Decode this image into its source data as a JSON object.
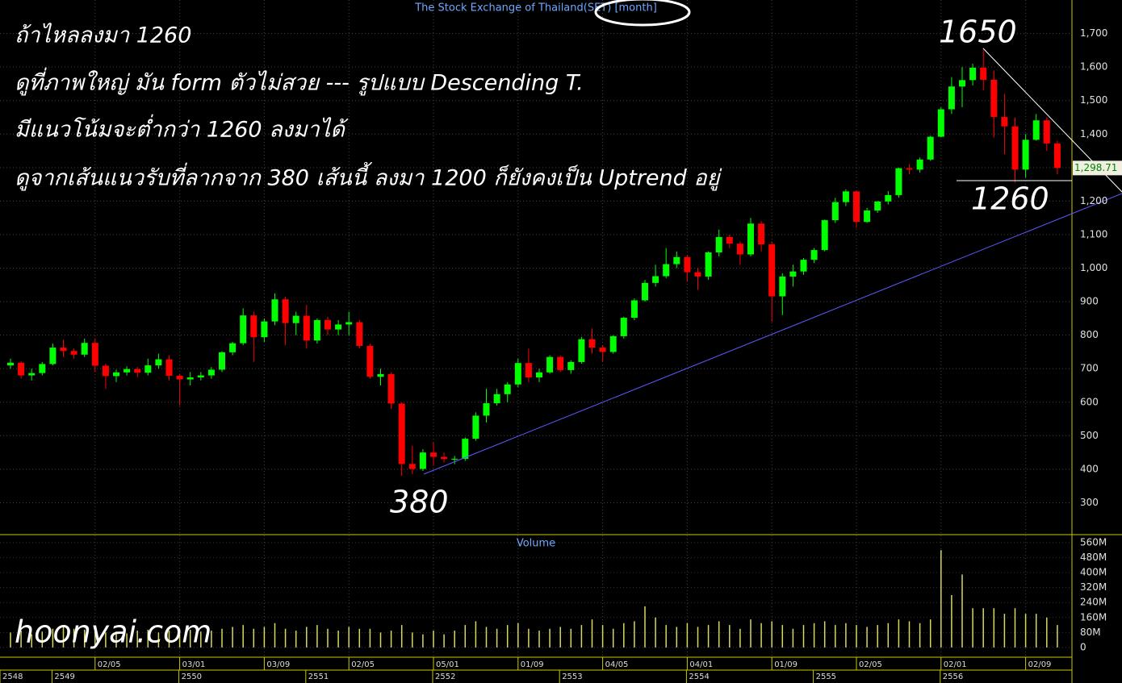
{
  "chart_data": {
    "type": "candlestick",
    "title": "The Stock Exchange of Thailand(SET) [month]",
    "volume_title": "Volume",
    "annotations": [
      "ถ้าไหลลงมา 1260",
      "ดูที่ภาพใหญ่ มัน form ตัวไม่สวย --- รูปแบบ Descending T.",
      "มีแนวโน้มจะต่ำกว่า 1260 ลงมาได้",
      "ดูจากเส้นแนวรับที่ลากจาก 380 เส้นนี้ ลงมา 1200 ก็ยังคงเป็น Uptrend อยู่"
    ],
    "level_labels": [
      "1650",
      "1260",
      "380"
    ],
    "watermark": "hoonyai.com",
    "up_color": "#00ff00",
    "down_color": "#ff0000",
    "volume_color": "#d8d860",
    "grid": true,
    "last_price": {
      "value": 1298.71,
      "label": "1,298.71"
    },
    "categories": [
      null,
      null,
      null,
      null,
      null,
      null,
      null,
      null,
      "02/05",
      null,
      null,
      null,
      null,
      null,
      null,
      null,
      "03/01",
      null,
      null,
      null,
      null,
      null,
      null,
      null,
      "03/09",
      null,
      null,
      null,
      null,
      null,
      null,
      null,
      "02/05",
      null,
      null,
      null,
      null,
      null,
      null,
      null,
      "05/01",
      null,
      null,
      null,
      null,
      null,
      null,
      null,
      "01/09",
      null,
      null,
      null,
      null,
      null,
      null,
      null,
      "04/05",
      null,
      null,
      null,
      null,
      null,
      null,
      null,
      "04/01",
      null,
      null,
      null,
      null,
      null,
      null,
      null,
      "01/09",
      null,
      null,
      null,
      null,
      null,
      null,
      null,
      "02/05",
      null,
      null,
      null,
      null,
      null,
      null,
      null,
      "02/01",
      null,
      null,
      null,
      null,
      null,
      null,
      null,
      "02/09",
      null,
      null,
      null
    ],
    "year_labels": [
      "2548",
      null,
      null,
      null,
      "2549",
      null,
      null,
      null,
      null,
      null,
      null,
      null,
      null,
      null,
      null,
      null,
      "2550",
      null,
      null,
      null,
      null,
      null,
      null,
      null,
      null,
      null,
      null,
      null,
      "2551",
      null,
      null,
      null,
      null,
      null,
      null,
      null,
      null,
      null,
      null,
      null,
      "2552",
      null,
      null,
      null,
      null,
      null,
      null,
      null,
      null,
      null,
      null,
      null,
      "2553",
      null,
      null,
      null,
      null,
      null,
      null,
      null,
      null,
      null,
      null,
      null,
      "2554",
      null,
      null,
      null,
      null,
      null,
      null,
      null,
      null,
      null,
      null,
      null,
      "2555",
      null,
      null,
      null,
      null,
      null,
      null,
      null,
      null,
      null,
      null,
      null,
      "2556",
      null,
      null,
      null,
      null,
      null,
      null,
      null,
      null,
      null,
      null,
      null
    ],
    "open": [
      710,
      718,
      680,
      687,
      714,
      763,
      753,
      742,
      777,
      709,
      678,
      689,
      699,
      688,
      710,
      728,
      679,
      668,
      674,
      680,
      697,
      749,
      776,
      859,
      794,
      841,
      907,
      836,
      858,
      784,
      845,
      817,
      832,
      839,
      768,
      676,
      684,
      596,
      416,
      401,
      450,
      437,
      431,
      431,
      491,
      560,
      597,
      624,
      653,
      717,
      674,
      689,
      735,
      696,
      720,
      788,
      763,
      750,
      797,
      852,
      904,
      956,
      976,
      1012,
      1033,
      988,
      975,
      1047,
      1093,
      1073,
      1041,
      1133,
      1071,
      916,
      975,
      990,
      1025,
      1054,
      1143,
      1197,
      1229,
      1138,
      1172,
      1199,
      1218,
      1298,
      1294,
      1324,
      1392,
      1474,
      1542,
      1561,
      1598,
      1562,
      1451,
      1423,
      1294,
      1383,
      1441,
      1372
    ],
    "high": [
      730,
      722,
      700,
      720,
      775,
      787,
      760,
      790,
      790,
      715,
      697,
      707,
      705,
      730,
      745,
      740,
      685,
      690,
      690,
      705,
      752,
      780,
      880,
      870,
      850,
      925,
      915,
      870,
      890,
      850,
      855,
      845,
      870,
      845,
      775,
      700,
      690,
      600,
      470,
      460,
      480,
      450,
      440,
      495,
      570,
      640,
      640,
      660,
      730,
      760,
      700,
      740,
      740,
      725,
      795,
      820,
      770,
      800,
      855,
      910,
      965,
      1010,
      1060,
      1050,
      1040,
      1000,
      1050,
      1115,
      1100,
      1080,
      1150,
      1140,
      1080,
      985,
      1010,
      1030,
      1060,
      1145,
      1210,
      1235,
      1230,
      1180,
      1200,
      1230,
      1300,
      1310,
      1330,
      1395,
      1480,
      1570,
      1600,
      1610,
      1650,
      1590,
      1520,
      1450,
      1400,
      1460,
      1450,
      1380
    ],
    "low": [
      700,
      670,
      665,
      680,
      710,
      735,
      730,
      735,
      690,
      640,
      660,
      680,
      675,
      680,
      700,
      665,
      590,
      650,
      665,
      670,
      690,
      740,
      770,
      720,
      780,
      830,
      770,
      800,
      760,
      775,
      800,
      800,
      800,
      760,
      670,
      650,
      580,
      380,
      385,
      395,
      410,
      420,
      415,
      425,
      485,
      540,
      590,
      600,
      645,
      660,
      660,
      685,
      690,
      685,
      715,
      745,
      720,
      745,
      790,
      845,
      900,
      945,
      970,
      1000,
      960,
      935,
      965,
      1035,
      1060,
      1010,
      1035,
      1050,
      840,
      860,
      945,
      980,
      1015,
      1050,
      1135,
      1185,
      1120,
      1135,
      1165,
      1190,
      1210,
      1280,
      1285,
      1320,
      1390,
      1460,
      1480,
      1545,
      1530,
      1390,
      1340,
      1255,
      1270,
      1380,
      1350,
      1280
    ],
    "close": [
      718,
      680,
      687,
      714,
      763,
      753,
      742,
      777,
      709,
      678,
      689,
      699,
      688,
      710,
      728,
      679,
      668,
      674,
      680,
      697,
      749,
      776,
      859,
      794,
      841,
      907,
      836,
      858,
      784,
      845,
      817,
      832,
      839,
      768,
      676,
      684,
      596,
      416,
      401,
      450,
      437,
      431,
      431,
      491,
      560,
      597,
      624,
      653,
      717,
      674,
      689,
      735,
      696,
      720,
      788,
      763,
      750,
      797,
      852,
      904,
      956,
      976,
      1012,
      1033,
      988,
      975,
      1047,
      1093,
      1073,
      1041,
      1133,
      1071,
      916,
      975,
      990,
      1025,
      1054,
      1143,
      1197,
      1229,
      1138,
      1172,
      1199,
      1218,
      1298,
      1294,
      1324,
      1392,
      1474,
      1542,
      1561,
      1598,
      1562,
      1451,
      1423,
      1294,
      1383,
      1441,
      1372,
      1298.71
    ],
    "volume": [
      80,
      90,
      70,
      85,
      100,
      110,
      100,
      95,
      90,
      80,
      85,
      75,
      90,
      95,
      80,
      90,
      70,
      95,
      85,
      90,
      100,
      110,
      120,
      100,
      110,
      130,
      100,
      90,
      110,
      120,
      100,
      90,
      110,
      100,
      100,
      80,
      90,
      120,
      80,
      70,
      90,
      70,
      90,
      120,
      140,
      110,
      100,
      120,
      130,
      100,
      90,
      100,
      110,
      100,
      120,
      150,
      120,
      100,
      130,
      140,
      220,
      160,
      120,
      110,
      130,
      110,
      120,
      140,
      120,
      100,
      150,
      130,
      140,
      120,
      100,
      120,
      130,
      140,
      120,
      130,
      120,
      110,
      120,
      130,
      150,
      140,
      130,
      150,
      520,
      280,
      390,
      210,
      210,
      210,
      180,
      210,
      180,
      180,
      160,
      120
    ],
    "ylim": [
      205,
      1800
    ],
    "yticks": [
      300,
      400,
      500,
      600,
      700,
      800,
      900,
      {
        "value": 1000,
        "label": "1,000"
      },
      {
        "value": 1100,
        "label": "1,100"
      },
      {
        "value": 1200,
        "label": "1,200"
      },
      {
        "value": 1300,
        "label": "1,300"
      },
      {
        "value": 1400,
        "label": "1,400"
      },
      {
        "value": 1500,
        "label": "1,500"
      },
      {
        "value": 1600,
        "label": "1,600"
      },
      {
        "value": 1700,
        "label": "1,700"
      }
    ],
    "y2lim": [
      -52,
      603
    ],
    "y2ticks": [
      0,
      {
        "value": 80,
        "label": "80M"
      },
      {
        "value": 160,
        "label": "160M"
      },
      {
        "value": 240,
        "label": "240M"
      },
      {
        "value": 320,
        "label": "320M"
      },
      {
        "value": 400,
        "label": "400M"
      },
      {
        "value": 480,
        "label": "480M"
      },
      {
        "value": 560,
        "label": "560M"
      }
    ]
  }
}
